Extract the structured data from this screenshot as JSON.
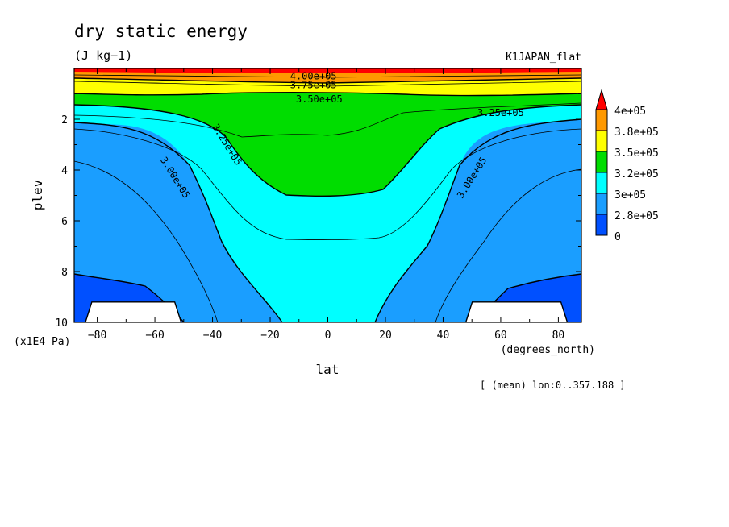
{
  "chart_data": {
    "type": "heatmap",
    "title": "dry static energy",
    "units": "(J kg−1)",
    "dataset": "K1JAPAN_flat",
    "xlabel": "lat",
    "x_units": "(degrees_north)",
    "ylabel": "plev",
    "y_units": "(x1E4 Pa)",
    "footnote": "[ (mean) lon:0..357.188 ]",
    "x_range": [
      -88,
      88
    ],
    "y_range": [
      10,
      0
    ],
    "x_ticks": [
      -80,
      -60,
      -40,
      -20,
      0,
      20,
      40,
      60,
      80
    ],
    "x_tick_labels": [
      "−80",
      "−60",
      "−40",
      "−20",
      "0",
      "20",
      "40",
      "60",
      "80"
    ],
    "y_ticks": [
      2,
      4,
      6,
      8,
      10
    ],
    "y_tick_labels": [
      "2",
      "4",
      "6",
      "8",
      "10"
    ],
    "colorbar": {
      "labels": [
        "4e+05",
        "3.8e+05",
        "3.5e+05",
        "3.2e+05",
        "3e+05",
        "2.8e+05",
        "0"
      ],
      "colors": [
        "#ff0000",
        "#ff9900",
        "#ffff00",
        "#00dd00",
        "#00ffff",
        "#1a9eff",
        "#0050ff"
      ]
    },
    "fill_colors": {
      "above_4e5": "#ff0000",
      "3.8e5_4e5": "#ff9900",
      "3.5e5_3.8e5": "#ffff00",
      "3.2e5_3.5e5": "#00dd00",
      "3e5_3.2e5": "#00ffff",
      "2.8e5_3e5": "#1a9eff",
      "below_2.8e5": "#0050ff",
      "missing": "#ffffff"
    },
    "contour_labels": [
      {
        "text": "4.00e+05",
        "lat": -5,
        "plev": 0.3
      },
      {
        "text": "3.75e+05",
        "lat": -5,
        "plev": 0.65
      },
      {
        "text": "3.50e+05",
        "lat": -3,
        "plev": 1.2
      },
      {
        "text": "3.25e+05",
        "lat": 60,
        "plev": 1.75
      },
      {
        "text": "3.25e+05",
        "lat": -35,
        "plev": 3.0
      },
      {
        "text": "3.00e+05",
        "lat": -53,
        "plev": 4.3
      },
      {
        "text": "3.00e+05",
        "lat": 50,
        "plev": 4.3
      }
    ],
    "contour_levels": [
      280000,
      300000,
      320000,
      325000,
      350000,
      375000,
      400000
    ],
    "missing_regions": [
      {
        "lat": [
          -83,
          -52
        ],
        "plev_top": 9.2
      },
      {
        "lat": [
          49,
          82
        ],
        "plev_top": 9.2
      }
    ]
  }
}
